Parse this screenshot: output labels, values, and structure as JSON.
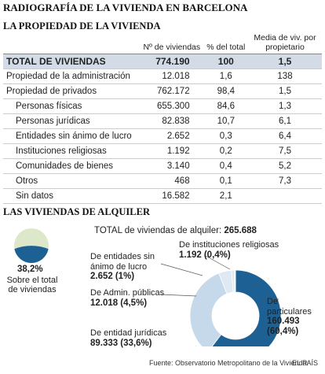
{
  "header": {
    "title": "RADIOGRAFÍA DE LA VIVIENDA EN BARCELONA"
  },
  "table": {
    "title": "LA PROPIEDAD DE LA VIVIENDA",
    "columns": [
      "Nº de viviendas",
      "% del total",
      "Media de viv. por propietario"
    ],
    "rows": [
      [
        "TOTAL DE VIVIENDAS",
        "774.190",
        "100",
        "1,5"
      ],
      [
        "Propiedad de la administración",
        "12.018",
        "1,6",
        "138"
      ],
      [
        "Propiedad de privados",
        "762.172",
        "98,4",
        "1,5"
      ],
      [
        "Personas físicas",
        "655.300",
        "84,6",
        "1,3"
      ],
      [
        "Personas jurídicas",
        "82.838",
        "10,7",
        "6,1"
      ],
      [
        "Entidades sin ánimo de lucro",
        "2.652",
        "0,3",
        "6,4"
      ],
      [
        "Instituciones religiosas",
        "1.192",
        "0,2",
        "7,5"
      ],
      [
        "Comunidades de bienes",
        "3.140",
        "0,4",
        "5,2"
      ],
      [
        "Otros",
        "468",
        "0,1",
        "7,3"
      ],
      [
        "Sin datos",
        "16.582",
        "2,1",
        ""
      ]
    ]
  },
  "rental_share": {
    "title": "LAS VIVIENDAS DE ALQUILER",
    "value": 38.2,
    "label": "38,2%",
    "caption": "Sobre el total de viviendas",
    "colors": [
      "#dce8c9",
      "#1d6194"
    ]
  },
  "chart_data": {
    "type": "donut",
    "total_label": "TOTAL de viviendas de alquiler:",
    "total": {
      "value": 265688,
      "label": "265.688"
    },
    "categories": [
      "De particulares",
      "De entidad jurídicas",
      "De Admin. públicas",
      "De entidades sin ánimo de lucro",
      "De instituciones religiosas"
    ],
    "values": [
      160493,
      89333,
      12018,
      2652,
      1192
    ],
    "value_labels": [
      "160.493",
      "89.333",
      "12.018",
      "2.652",
      "1.192"
    ],
    "percents": [
      60.4,
      33.6,
      4.5,
      1,
      0.4
    ],
    "percent_labels": [
      "(60,4%)",
      "(33,6%)",
      "(4,5%)",
      "(1%)",
      "(0,4%)"
    ],
    "colors": [
      "#1d6194",
      "#c6d9eb",
      "#dfe9f3",
      "#e4e8ec",
      "#eceff2"
    ]
  },
  "footer": {
    "source": "Fuente: Observatorio Metropolitano de la Vivienda.",
    "brand": "EL PAÍS"
  }
}
